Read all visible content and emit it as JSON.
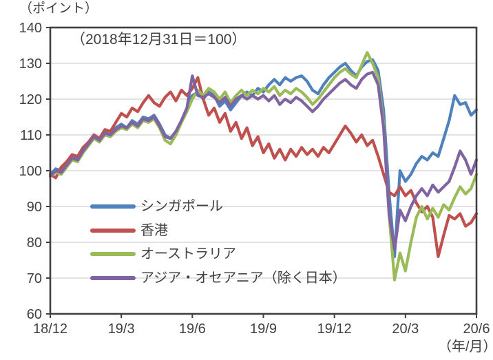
{
  "chart_data": {
    "type": "line",
    "title_note": "（2018年12月31日＝100）",
    "y_unit_label": "（ポイント）",
    "x_unit_label": "（年/月）",
    "x_tick_labels": [
      "18/12",
      "19/3",
      "19/6",
      "19/9",
      "19/12",
      "20/3",
      "20/6"
    ],
    "y_ticks": [
      60,
      70,
      80,
      90,
      100,
      110,
      120,
      130,
      140
    ],
    "ylim": [
      60,
      140
    ],
    "grid": "horizontal-only",
    "legend_position": "inside-lower-left",
    "x_sampling": "uniform, 79 points from 2018-12-31 to 2020-06-30",
    "colors": {
      "axis": "#404040",
      "grid": "#d9d9d9",
      "text": "#404040",
      "singapore": "#4F81BD",
      "hongkong": "#C0504D",
      "australia": "#9BBB59",
      "asia_oceania": "#8064A2"
    },
    "series": [
      {
        "key": "singapore",
        "name": "シンガポール",
        "color": "#4F81BD",
        "values": [
          99,
          100.5,
          100,
          102,
          104,
          103.5,
          106,
          108,
          110,
          109,
          111,
          110,
          112,
          113,
          112,
          114,
          113,
          115,
          114.5,
          115.5,
          113,
          110,
          109,
          111,
          114,
          117.5,
          121,
          122,
          120,
          122,
          121,
          118,
          119.5,
          117,
          119,
          121,
          122,
          121,
          123,
          122,
          124,
          125.5,
          124,
          126,
          125,
          126,
          126.5,
          125,
          122.5,
          121.5,
          124,
          126,
          127.5,
          129,
          130,
          128,
          126.5,
          129,
          130.5,
          131,
          128,
          117,
          94,
          76,
          100,
          97,
          99,
          102,
          104,
          103,
          105,
          104,
          109,
          114,
          121,
          118.5,
          119,
          115.5,
          117
        ]
      },
      {
        "key": "hongkong",
        "name": "香港",
        "color": "#C0504D",
        "values": [
          99,
          98,
          101,
          102.5,
          104.5,
          104,
          106.5,
          108,
          110,
          109,
          111.5,
          111,
          113.5,
          116,
          115,
          117.5,
          116.5,
          119,
          121,
          119,
          118,
          120.5,
          122,
          119.5,
          122.5,
          121,
          123,
          126,
          120,
          115.5,
          117.5,
          113.5,
          116,
          111,
          113.5,
          109,
          112,
          107,
          109.5,
          105,
          107.5,
          103.5,
          106,
          103,
          106,
          104,
          106.5,
          104.5,
          106,
          104,
          106.5,
          105,
          107.5,
          110,
          112.5,
          110.5,
          108,
          110,
          107,
          108.5,
          104,
          99,
          94,
          93,
          95.5,
          93,
          94.5,
          91,
          88.5,
          90,
          87,
          76,
          82,
          87.5,
          86.5,
          88,
          84.5,
          85.5,
          88
        ]
      },
      {
        "key": "australia",
        "name": "オーストラリア",
        "color": "#9BBB59",
        "values": [
          98.5,
          99.5,
          99,
          101,
          103,
          102.5,
          105,
          107,
          109,
          108,
          110,
          109.5,
          111,
          112,
          111.5,
          113,
          112,
          114,
          113.5,
          114.5,
          112,
          108.5,
          107.5,
          110,
          113.5,
          116.5,
          120,
          122.5,
          121,
          123,
          122,
          120,
          122,
          119,
          121,
          122.5,
          121,
          122.5,
          121.5,
          123,
          122,
          123.5,
          121,
          122.5,
          121.5,
          123,
          122,
          120.5,
          118.5,
          120,
          122,
          124,
          126,
          127.5,
          128.5,
          127,
          126,
          129.5,
          133,
          130,
          126,
          113,
          88,
          69.5,
          77,
          72,
          80,
          87,
          90,
          86.5,
          89.5,
          87,
          90.5,
          89,
          92.5,
          95.5,
          93.5,
          95,
          99
        ]
      },
      {
        "key": "asia_oceania",
        "name": "アジア・オセアニア（除く日本）",
        "color": "#8064A2",
        "values": [
          98.5,
          100,
          99.5,
          101.5,
          103.5,
          103,
          105.5,
          107.5,
          109.5,
          108.5,
          110.5,
          110,
          111.5,
          112.5,
          112,
          113.5,
          112.5,
          114.5,
          114,
          115,
          112.5,
          109.5,
          109,
          111,
          114,
          117.5,
          126.5,
          121,
          120.5,
          121.5,
          120.5,
          119,
          120.5,
          118,
          120,
          121,
          120,
          121,
          120,
          121,
          119.5,
          121,
          118.5,
          120,
          119,
          120.5,
          119.5,
          118,
          116.5,
          118,
          120,
          121.5,
          123,
          124.5,
          125.5,
          124,
          123,
          125.5,
          127,
          127.5,
          124,
          112,
          88,
          78,
          89,
          86,
          90,
          93,
          95,
          93,
          96,
          94,
          95.5,
          97,
          101,
          105.5,
          103,
          99,
          103
        ]
      }
    ]
  }
}
